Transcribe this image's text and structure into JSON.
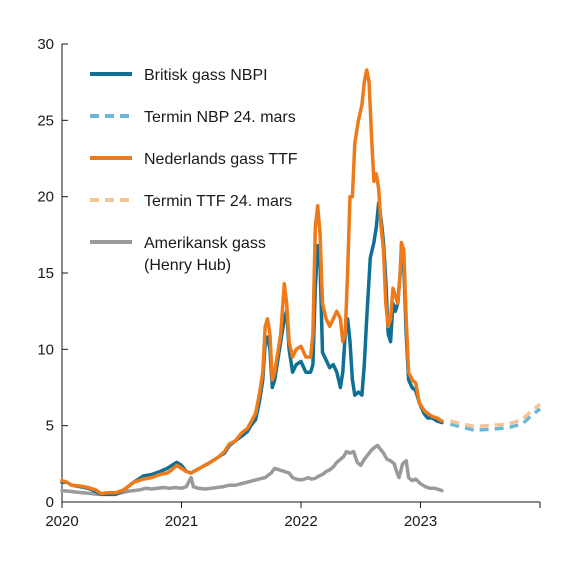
{
  "chart_data": {
    "type": "line",
    "title": "",
    "xlabel": "",
    "ylabel": "",
    "xlim": [
      2020,
      2024
    ],
    "ylim": [
      0,
      30
    ],
    "x_ticks": [
      "2020",
      "2021",
      "2022",
      "2023"
    ],
    "y_ticks": [
      "0",
      "5",
      "10",
      "15",
      "20",
      "25",
      "30"
    ],
    "grid": false,
    "legend_position": "top-left",
    "colors": {
      "nbp": "#0f6f95",
      "nbp_forward": "#6ab7d8",
      "ttf": "#ef7a1a",
      "ttf_forward": "#f7c393",
      "henry_hub": "#9a9a9a"
    },
    "series": [
      {
        "name": "Britisk gass NBPI",
        "key": "nbp",
        "style": "solid",
        "points": [
          [
            2020.0,
            1.3
          ],
          [
            2020.04,
            1.3
          ],
          [
            2020.08,
            1.1
          ],
          [
            2020.15,
            1.0
          ],
          [
            2020.22,
            0.9
          ],
          [
            2020.28,
            0.7
          ],
          [
            2020.33,
            0.5
          ],
          [
            2020.38,
            0.5
          ],
          [
            2020.45,
            0.5
          ],
          [
            2020.52,
            0.8
          ],
          [
            2020.6,
            1.3
          ],
          [
            2020.68,
            1.7
          ],
          [
            2020.75,
            1.8
          ],
          [
            2020.82,
            2.0
          ],
          [
            2020.88,
            2.2
          ],
          [
            2020.92,
            2.4
          ],
          [
            2020.96,
            2.6
          ],
          [
            2021.0,
            2.4
          ],
          [
            2021.04,
            2.0
          ],
          [
            2021.08,
            1.9
          ],
          [
            2021.15,
            2.2
          ],
          [
            2021.22,
            2.5
          ],
          [
            2021.28,
            2.8
          ],
          [
            2021.32,
            3.0
          ],
          [
            2021.36,
            3.2
          ],
          [
            2021.4,
            3.7
          ],
          [
            2021.45,
            4.0
          ],
          [
            2021.5,
            4.3
          ],
          [
            2021.55,
            4.6
          ],
          [
            2021.58,
            5.0
          ],
          [
            2021.62,
            5.4
          ],
          [
            2021.65,
            6.5
          ],
          [
            2021.68,
            8.0
          ],
          [
            2021.7,
            10.5
          ],
          [
            2021.72,
            10.8
          ],
          [
            2021.74,
            10.0
          ],
          [
            2021.76,
            7.5
          ],
          [
            2021.78,
            8.0
          ],
          [
            2021.8,
            9.0
          ],
          [
            2021.83,
            10.5
          ],
          [
            2021.86,
            12.0
          ],
          [
            2021.88,
            12.5
          ],
          [
            2021.9,
            10.0
          ],
          [
            2021.93,
            8.5
          ],
          [
            2021.96,
            9.0
          ],
          [
            2022.0,
            9.2
          ],
          [
            2022.04,
            8.5
          ],
          [
            2022.08,
            8.5
          ],
          [
            2022.1,
            9.0
          ],
          [
            2022.12,
            14.0
          ],
          [
            2022.14,
            16.8
          ],
          [
            2022.16,
            15.5
          ],
          [
            2022.18,
            9.8
          ],
          [
            2022.21,
            9.3
          ],
          [
            2022.24,
            8.8
          ],
          [
            2022.27,
            9.0
          ],
          [
            2022.3,
            8.5
          ],
          [
            2022.33,
            7.5
          ],
          [
            2022.35,
            8.5
          ],
          [
            2022.37,
            11.0
          ],
          [
            2022.39,
            12.0
          ],
          [
            2022.41,
            10.5
          ],
          [
            2022.43,
            8.0
          ],
          [
            2022.45,
            7.0
          ],
          [
            2022.48,
            7.2
          ],
          [
            2022.51,
            7.0
          ],
          [
            2022.53,
            9.0
          ],
          [
            2022.55,
            12.0
          ],
          [
            2022.58,
            16.0
          ],
          [
            2022.61,
            17.0
          ],
          [
            2022.63,
            18.0
          ],
          [
            2022.65,
            19.6
          ],
          [
            2022.67,
            18.5
          ],
          [
            2022.69,
            17.0
          ],
          [
            2022.71,
            14.5
          ],
          [
            2022.73,
            11.0
          ],
          [
            2022.75,
            10.5
          ],
          [
            2022.77,
            13.0
          ],
          [
            2022.79,
            12.5
          ],
          [
            2022.81,
            13.0
          ],
          [
            2022.83,
            15.0
          ],
          [
            2022.84,
            16.3
          ],
          [
            2022.86,
            15.5
          ],
          [
            2022.88,
            11.0
          ],
          [
            2022.9,
            8.0
          ],
          [
            2022.93,
            7.5
          ],
          [
            2022.96,
            7.3
          ],
          [
            2022.99,
            6.5
          ],
          [
            2023.03,
            5.8
          ],
          [
            2023.06,
            5.5
          ],
          [
            2023.1,
            5.5
          ],
          [
            2023.14,
            5.3
          ],
          [
            2023.18,
            5.2
          ]
        ]
      },
      {
        "name": "Termin NBP 24. mars",
        "key": "nbp_forward",
        "style": "dashed",
        "points": [
          [
            2023.25,
            5.1
          ],
          [
            2023.35,
            4.9
          ],
          [
            2023.45,
            4.7
          ],
          [
            2023.55,
            4.75
          ],
          [
            2023.65,
            4.8
          ],
          [
            2023.75,
            4.9
          ],
          [
            2023.85,
            5.1
          ],
          [
            2023.92,
            5.6
          ],
          [
            2024.0,
            6.1
          ]
        ]
      },
      {
        "name": "Nederlands gass TTF",
        "key": "ttf",
        "style": "solid",
        "points": [
          [
            2020.0,
            1.4
          ],
          [
            2020.04,
            1.3
          ],
          [
            2020.08,
            1.1
          ],
          [
            2020.15,
            1.05
          ],
          [
            2020.22,
            0.95
          ],
          [
            2020.28,
            0.8
          ],
          [
            2020.33,
            0.55
          ],
          [
            2020.38,
            0.6
          ],
          [
            2020.45,
            0.6
          ],
          [
            2020.52,
            0.8
          ],
          [
            2020.6,
            1.3
          ],
          [
            2020.68,
            1.5
          ],
          [
            2020.75,
            1.6
          ],
          [
            2020.82,
            1.8
          ],
          [
            2020.88,
            1.9
          ],
          [
            2020.92,
            2.1
          ],
          [
            2020.96,
            2.4
          ],
          [
            2021.0,
            2.2
          ],
          [
            2021.04,
            2.0
          ],
          [
            2021.08,
            1.9
          ],
          [
            2021.15,
            2.2
          ],
          [
            2021.22,
            2.5
          ],
          [
            2021.28,
            2.8
          ],
          [
            2021.32,
            3.0
          ],
          [
            2021.36,
            3.3
          ],
          [
            2021.4,
            3.8
          ],
          [
            2021.45,
            4.0
          ],
          [
            2021.5,
            4.5
          ],
          [
            2021.55,
            4.8
          ],
          [
            2021.58,
            5.2
          ],
          [
            2021.62,
            5.8
          ],
          [
            2021.65,
            7.0
          ],
          [
            2021.68,
            8.5
          ],
          [
            2021.7,
            11.5
          ],
          [
            2021.72,
            12.0
          ],
          [
            2021.74,
            11.0
          ],
          [
            2021.76,
            8.0
          ],
          [
            2021.78,
            8.5
          ],
          [
            2021.8,
            9.5
          ],
          [
            2021.83,
            11.0
          ],
          [
            2021.86,
            14.3
          ],
          [
            2021.88,
            13.0
          ],
          [
            2021.9,
            10.5
          ],
          [
            2021.93,
            9.5
          ],
          [
            2021.96,
            10.0
          ],
          [
            2022.0,
            10.2
          ],
          [
            2022.04,
            9.5
          ],
          [
            2022.08,
            9.5
          ],
          [
            2022.1,
            11.0
          ],
          [
            2022.12,
            18.0
          ],
          [
            2022.14,
            19.4
          ],
          [
            2022.16,
            17.5
          ],
          [
            2022.18,
            13.0
          ],
          [
            2022.21,
            12.0
          ],
          [
            2022.24,
            11.5
          ],
          [
            2022.27,
            12.0
          ],
          [
            2022.3,
            12.5
          ],
          [
            2022.33,
            12.0
          ],
          [
            2022.35,
            10.5
          ],
          [
            2022.37,
            11.0
          ],
          [
            2022.39,
            15.0
          ],
          [
            2022.41,
            20.0
          ],
          [
            2022.43,
            20.0
          ],
          [
            2022.45,
            23.5
          ],
          [
            2022.48,
            25.0
          ],
          [
            2022.51,
            26.0
          ],
          [
            2022.53,
            27.5
          ],
          [
            2022.55,
            28.3
          ],
          [
            2022.57,
            27.5
          ],
          [
            2022.59,
            24.0
          ],
          [
            2022.61,
            21.0
          ],
          [
            2022.63,
            21.5
          ],
          [
            2022.65,
            20.5
          ],
          [
            2022.67,
            18.0
          ],
          [
            2022.69,
            16.5
          ],
          [
            2022.71,
            13.0
          ],
          [
            2022.73,
            11.5
          ],
          [
            2022.75,
            12.0
          ],
          [
            2022.77,
            14.0
          ],
          [
            2022.79,
            13.5
          ],
          [
            2022.81,
            13.0
          ],
          [
            2022.83,
            15.0
          ],
          [
            2022.84,
            17.0
          ],
          [
            2022.86,
            16.5
          ],
          [
            2022.88,
            12.0
          ],
          [
            2022.9,
            8.5
          ],
          [
            2022.93,
            8.0
          ],
          [
            2022.96,
            7.8
          ],
          [
            2022.99,
            6.5
          ],
          [
            2023.03,
            6.0
          ],
          [
            2023.06,
            5.8
          ],
          [
            2023.1,
            5.6
          ],
          [
            2023.14,
            5.5
          ],
          [
            2023.18,
            5.3
          ]
        ]
      },
      {
        "name": "Termin TTF 24. mars",
        "key": "ttf_forward",
        "style": "dashed",
        "points": [
          [
            2023.25,
            5.3
          ],
          [
            2023.35,
            5.1
          ],
          [
            2023.45,
            4.95
          ],
          [
            2023.55,
            5.0
          ],
          [
            2023.65,
            5.05
          ],
          [
            2023.75,
            5.15
          ],
          [
            2023.85,
            5.4
          ],
          [
            2023.92,
            5.9
          ],
          [
            2024.0,
            6.4
          ]
        ]
      },
      {
        "name": "Amerikansk gass (Henry Hub)",
        "key": "henry_hub",
        "style": "solid",
        "points": [
          [
            2020.0,
            0.75
          ],
          [
            2020.06,
            0.7
          ],
          [
            2020.12,
            0.65
          ],
          [
            2020.18,
            0.6
          ],
          [
            2020.25,
            0.55
          ],
          [
            2020.3,
            0.5
          ],
          [
            2020.35,
            0.55
          ],
          [
            2020.42,
            0.5
          ],
          [
            2020.5,
            0.6
          ],
          [
            2020.55,
            0.7
          ],
          [
            2020.6,
            0.75
          ],
          [
            2020.65,
            0.8
          ],
          [
            2020.7,
            0.9
          ],
          [
            2020.75,
            0.85
          ],
          [
            2020.8,
            0.9
          ],
          [
            2020.85,
            0.95
          ],
          [
            2020.9,
            0.9
          ],
          [
            2020.95,
            0.95
          ],
          [
            2021.0,
            0.9
          ],
          [
            2021.04,
            1.0
          ],
          [
            2021.08,
            1.6
          ],
          [
            2021.1,
            1.0
          ],
          [
            2021.14,
            0.9
          ],
          [
            2021.2,
            0.85
          ],
          [
            2021.25,
            0.9
          ],
          [
            2021.3,
            0.95
          ],
          [
            2021.35,
            1.0
          ],
          [
            2021.4,
            1.1
          ],
          [
            2021.45,
            1.1
          ],
          [
            2021.5,
            1.2
          ],
          [
            2021.55,
            1.3
          ],
          [
            2021.6,
            1.4
          ],
          [
            2021.65,
            1.5
          ],
          [
            2021.7,
            1.6
          ],
          [
            2021.75,
            1.9
          ],
          [
            2021.78,
            2.2
          ],
          [
            2021.82,
            2.1
          ],
          [
            2021.86,
            2.0
          ],
          [
            2021.9,
            1.9
          ],
          [
            2021.93,
            1.6
          ],
          [
            2021.96,
            1.5
          ],
          [
            2022.0,
            1.45
          ],
          [
            2022.03,
            1.5
          ],
          [
            2022.06,
            1.6
          ],
          [
            2022.09,
            1.5
          ],
          [
            2022.12,
            1.55
          ],
          [
            2022.15,
            1.7
          ],
          [
            2022.18,
            1.8
          ],
          [
            2022.21,
            2.0
          ],
          [
            2022.24,
            2.1
          ],
          [
            2022.27,
            2.3
          ],
          [
            2022.3,
            2.6
          ],
          [
            2022.33,
            2.8
          ],
          [
            2022.36,
            3.0
          ],
          [
            2022.38,
            3.3
          ],
          [
            2022.41,
            3.2
          ],
          [
            2022.44,
            3.3
          ],
          [
            2022.47,
            2.6
          ],
          [
            2022.5,
            2.4
          ],
          [
            2022.53,
            2.8
          ],
          [
            2022.56,
            3.1
          ],
          [
            2022.59,
            3.4
          ],
          [
            2022.62,
            3.6
          ],
          [
            2022.64,
            3.7
          ],
          [
            2022.66,
            3.5
          ],
          [
            2022.69,
            3.2
          ],
          [
            2022.72,
            2.8
          ],
          [
            2022.75,
            2.7
          ],
          [
            2022.78,
            2.5
          ],
          [
            2022.8,
            2.0
          ],
          [
            2022.82,
            1.6
          ],
          [
            2022.85,
            2.5
          ],
          [
            2022.88,
            2.7
          ],
          [
            2022.9,
            1.6
          ],
          [
            2022.93,
            1.4
          ],
          [
            2022.96,
            1.5
          ],
          [
            2023.0,
            1.2
          ],
          [
            2023.04,
            1.0
          ],
          [
            2023.08,
            0.9
          ],
          [
            2023.12,
            0.9
          ],
          [
            2023.16,
            0.8
          ],
          [
            2023.18,
            0.75
          ]
        ]
      }
    ],
    "legend": [
      {
        "label": "Britisk gass NBPI",
        "key": "nbp",
        "style": "solid"
      },
      {
        "label": "Termin NBP 24. mars",
        "key": "nbp_forward",
        "style": "dashed"
      },
      {
        "label": "Nederlands gass TTF",
        "key": "ttf",
        "style": "solid"
      },
      {
        "label": "Termin TTF 24. mars",
        "key": "ttf_forward",
        "style": "dashed"
      },
      {
        "label": "Amerikansk gass",
        "label_line2": "(Henry Hub)",
        "key": "henry_hub",
        "style": "solid"
      }
    ]
  }
}
